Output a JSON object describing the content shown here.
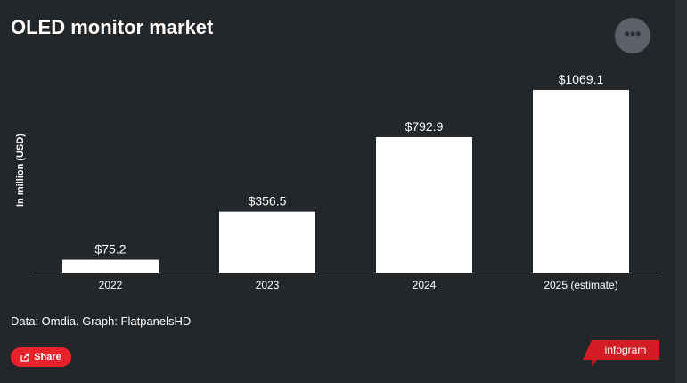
{
  "title": "OLED monitor market",
  "more_button": "•••",
  "source": "Data: Omdia. Graph: FlatpanelsHD",
  "share_label": "Share",
  "brand": "infogram",
  "colors": {
    "background": "#24272a",
    "bar": "#ffffff",
    "share": "#e8222a",
    "brand": "#d31c24"
  },
  "icons": {
    "share": "share-icon",
    "more": "more-dots-icon"
  },
  "chart_data": {
    "type": "bar",
    "title": "OLED monitor market",
    "ylabel": "In million (USD)",
    "xlabel": "",
    "categories": [
      "2022",
      "2023",
      "2024",
      "2025 (estimate)"
    ],
    "values": [
      75.2,
      356.5,
      792.9,
      1069.1
    ],
    "data_labels": [
      "$75.2",
      "$356.5",
      "$792.9",
      "$1069.1"
    ],
    "ylim": [
      0,
      1069.1
    ],
    "grid": false,
    "legend": "none"
  }
}
